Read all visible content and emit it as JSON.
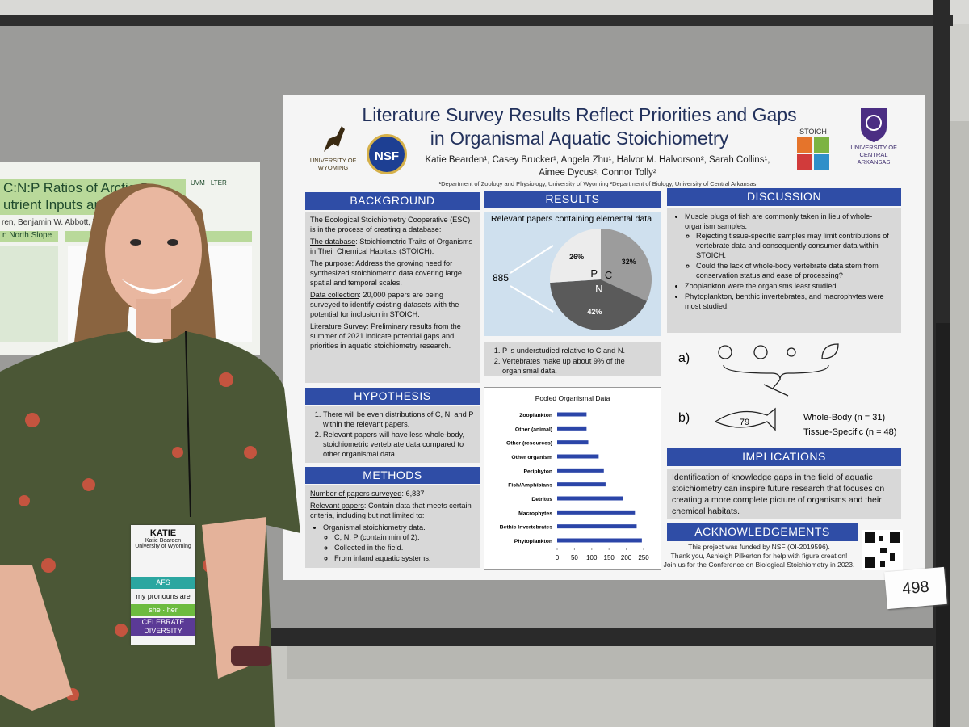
{
  "poster": {
    "title": "Literature Survey Results Reflect Priorities and Gaps in Organismal Aquatic Stoichiometry",
    "authors": "Katie Bearden¹, Casey Brucker¹, Angela Zhu¹, Halvor M. Halvorson², Sarah Collins¹, Aimee Dycus², Connor Tolly²",
    "affiliations": "¹Department of Zoology and Physiology, University of Wyoming ²Department of Biology, University of Central Arkansas",
    "logos": {
      "wyoming": "UNIVERSITY OF WYOMING",
      "nsf": "NSF",
      "stoich": "STOICH",
      "uca": "UNIVERSITY OF CENTRAL ARKANSAS"
    },
    "background": {
      "heading": "BACKGROUND",
      "intro": "The Ecological Stoichiometry Cooperative (ESC) is in the process of creating a database:",
      "items": [
        {
          "label": "The database",
          "text": ": Stoichiometric Traits of Organisms in Their Chemical Habitats (STOICH)."
        },
        {
          "label": "The purpose",
          "text": ": Address the growing need for synthesized stoichiometric data covering large spatial and temporal scales."
        },
        {
          "label": "Data collection",
          "text": ": 20,000 papers are being surveyed to identify existing datasets with the potential for inclusion in STOICH."
        },
        {
          "label": "Literature Survey",
          "text": ": Preliminary results from the summer of 2021 indicate potential gaps and priorities in aquatic stoichiometry research."
        }
      ]
    },
    "hypothesis": {
      "heading": "HYPOTHESIS",
      "items": [
        "There will be even distributions of C, N, and P within the relevant papers.",
        "Relevant papers will have less whole-body, stoichiometric vertebrate data compared to other organismal data."
      ]
    },
    "methods": {
      "heading": "METHODS",
      "items": [
        {
          "label": "Number of papers surveyed",
          "text": ": 6,837"
        },
        {
          "label": "Relevant papers",
          "text": ": Contain data that meets certain criteria, including but not limited to:"
        }
      ],
      "bullets": [
        {
          "text": "Organismal stoichiometry data.",
          "sub": [
            "C, N, P (contain min of 2).",
            "Collected in the field.",
            "From inland aquatic systems."
          ]
        }
      ]
    },
    "results": {
      "heading": "RESULTS",
      "pie": {
        "title": "Relevant papers containing elemental data",
        "total": "885",
        "labels": [
          "C",
          "N",
          "P"
        ],
        "values": [
          32,
          42,
          26
        ],
        "value_labels": [
          "32%",
          "42%",
          "26%"
        ],
        "colors": [
          "#9c9c9c",
          "#5a5a5a",
          "#ececec"
        ]
      },
      "items": [
        "P is understudied relative to C and N.",
        "Vertebrates make up about 9% of the organismal data."
      ],
      "bar_chart": {
        "type": "bar",
        "title": "Pooled Organismal Data",
        "color": "#2b45a8",
        "categories": [
          "Zooplankton",
          "Other (animal)",
          "Other (resources)",
          "Other organism",
          "Periphyton",
          "Fish/Amphibians",
          "Detritus",
          "Macrophytes",
          "Bethic Invertebrates",
          "Phytoplankton"
        ],
        "values": [
          85,
          85,
          90,
          120,
          135,
          140,
          190,
          225,
          230,
          245
        ],
        "xlim": [
          0,
          250
        ],
        "xticks": [
          0,
          50,
          100,
          150,
          200,
          250
        ]
      }
    },
    "discussion": {
      "heading": "DISCUSSION",
      "items": [
        {
          "text": "Muscle plugs of fish are commonly taken in lieu of whole-organism samples.",
          "sub": [
            "Rejecting tissue-specific samples may limit contributions of vertebrate data and consequently consumer data within STOICH.",
            "Could the lack of whole-body vertebrate data stem from conservation status and ease of processing?"
          ]
        },
        {
          "text": "Zooplankton were the organisms least studied.",
          "sub": []
        },
        {
          "text": "Phytoplankton, benthic invertebrates, and macrophytes were most studied.",
          "sub": []
        }
      ],
      "figure": {
        "a": "a)",
        "b": "b)",
        "fish_count": "79",
        "whole_body": "Whole-Body (n = 31)",
        "tissue_specific": "Tissue-Specific (n = 48)"
      }
    },
    "implications": {
      "heading": "IMPLICATIONS",
      "text": "Identification of knowledge gaps in the field of aquatic stoichiometry can inspire future research that focuses on creating a more complete picture of organisms and their chemical habitats."
    },
    "acknowledgements": {
      "heading": "ACKNOWLEDGEMENTS",
      "lines": [
        "This project was funded by NSF (OI-2019596).",
        "Thank you, Ashleigh Pilkerton for help with figure creation!",
        "Join us for the Conference on Biological Stoichiometry in 2023."
      ]
    }
  },
  "board_number": "498",
  "left_poster": {
    "title": [
      "C:N:P Ratios of Arctic C",
      "utrient Inputs and D"
    ],
    "authors": "ren, Benjamin W. Abbott, Wil",
    "section": "n North Slope"
  },
  "name_tag": {
    "name": "KATIE",
    "full_name": "Katie Bearden",
    "affiliation": "University of Wyoming",
    "ribbons": [
      "AFS",
      "my pronouns are",
      "she · her",
      "CELEBRATE DIVERSITY"
    ]
  }
}
